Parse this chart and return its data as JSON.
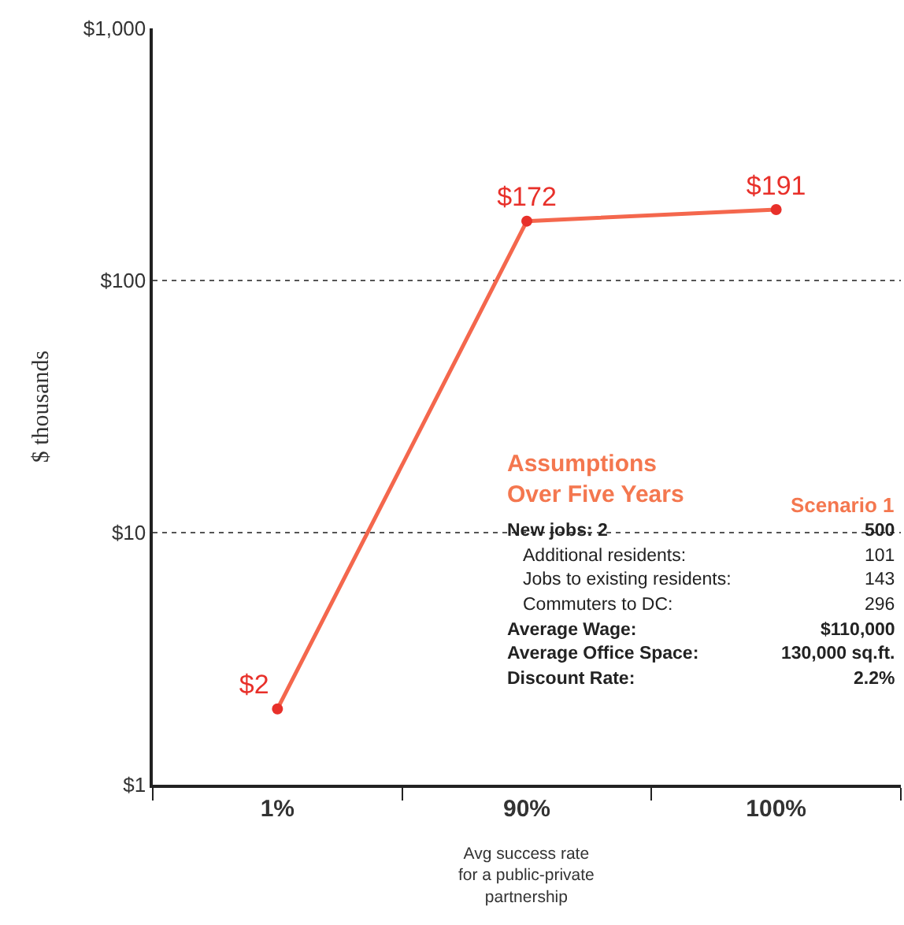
{
  "chart_data": {
    "type": "line",
    "ylabel": "$ thousands",
    "categories": [
      "1%",
      "90%",
      "100%"
    ],
    "series": [
      {
        "color": "#f4674d",
        "values": [
          2,
          172,
          191
        ],
        "value_labels": [
          "$2",
          "$172",
          "$191"
        ]
      }
    ],
    "log": "y",
    "ylim": [
      1,
      1000
    ],
    "yticks": [
      {
        "value": 1,
        "label": "$1"
      },
      {
        "value": 10,
        "label": "$10"
      },
      {
        "value": 100,
        "label": "$100"
      },
      {
        "value": 1000,
        "label": "$1,000"
      }
    ],
    "grid": "y",
    "marker": "circle",
    "line_style": "solid",
    "annotations": [
      "Avg success rate\nfor a public-private\npartnership",
      "Assumptions\nOver Five Years",
      "Scenario 1",
      "New jobs: 2",
      "500",
      "Additional residents:",
      "101",
      "Jobs to existing residents:",
      "143",
      "Commuters to DC:",
      "296",
      "Average Wage:",
      "$110,000",
      "Average Office Space:",
      "130,000 sq.ft.",
      "Discount Rate:",
      "2.2%"
    ]
  }
}
